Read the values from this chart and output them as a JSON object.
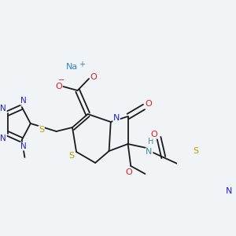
{
  "bg_color": "#f0f4f7",
  "fig_width": 3.0,
  "fig_height": 3.0,
  "dpi": 100,
  "bond_color": "#1a1a1a",
  "bond_lw": 1.3,
  "colors": {
    "N": "#2020dd",
    "O": "#dd2020",
    "S": "#b8a000",
    "Na": "#4080c0",
    "C": "#1a1a1a",
    "H": "#4090a0"
  }
}
